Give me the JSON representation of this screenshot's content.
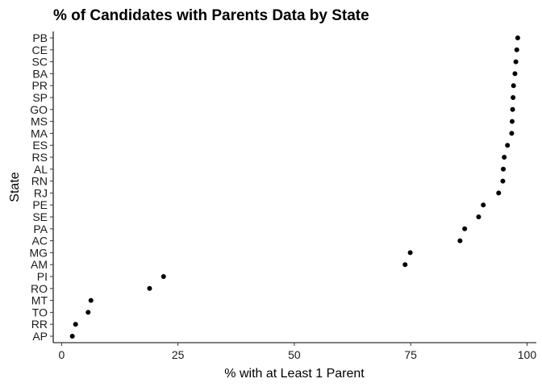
{
  "chart_data": {
    "type": "scatter",
    "title": "% of Candidates with Parents Data by State",
    "xlabel": "% with at Least 1 Parent",
    "ylabel": "State",
    "xlim": [
      -1.8,
      102
    ],
    "xticks": [
      0,
      25,
      50,
      75,
      100
    ],
    "categories": [
      "AP",
      "RR",
      "TO",
      "MT",
      "RO",
      "PI",
      "AM",
      "MG",
      "AC",
      "PA",
      "SE",
      "PE",
      "RJ",
      "RN",
      "AL",
      "RS",
      "ES",
      "MA",
      "MS",
      "GO",
      "SP",
      "PR",
      "BA",
      "SC",
      "CE",
      "PB"
    ],
    "values": [
      2.3,
      3.0,
      5.7,
      6.3,
      18.9,
      21.9,
      73.8,
      74.9,
      85.6,
      86.6,
      89.6,
      90.6,
      93.9,
      94.8,
      94.9,
      95.1,
      95.8,
      96.7,
      96.8,
      96.9,
      97.0,
      97.1,
      97.4,
      97.6,
      97.8,
      98.0
    ],
    "grid": false,
    "legend": "none"
  }
}
